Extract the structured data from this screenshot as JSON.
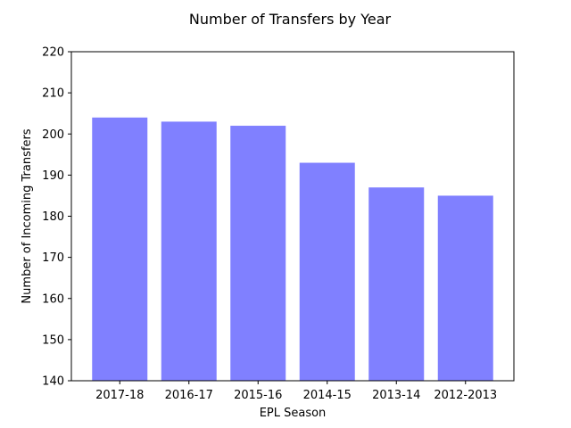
{
  "chart_data": {
    "type": "bar",
    "title": "Number of Transfers by Year",
    "xlabel": "EPL Season",
    "ylabel": "Number of Incoming Transfers",
    "categories": [
      "2017-18",
      "2016-17",
      "2015-16",
      "2014-15",
      "2013-14",
      "2012-2013"
    ],
    "values": [
      204,
      203,
      202,
      193,
      187,
      185
    ],
    "ylim": [
      140,
      220
    ],
    "yticks": [
      140,
      150,
      160,
      170,
      180,
      190,
      200,
      210,
      220
    ],
    "bar_color": "#8080ff",
    "grid": false,
    "legend": "none"
  }
}
